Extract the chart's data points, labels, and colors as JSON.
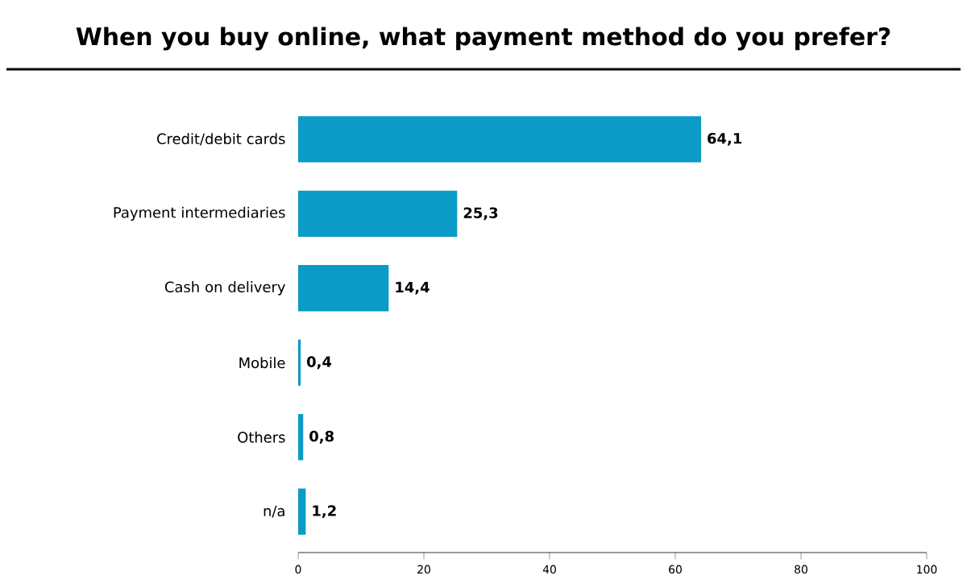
{
  "chart_data": {
    "type": "bar",
    "orientation": "horizontal",
    "title": "When you buy online, what payment method do you prefer?",
    "categories": [
      "Credit/debit cards",
      "Payment intermediaries",
      "Cash on delivery",
      "Mobile",
      "Others",
      "n/a"
    ],
    "values": [
      64.1,
      25.3,
      14.4,
      0.4,
      0.8,
      1.2
    ],
    "value_labels": [
      "64,1",
      "25,3",
      "14,4",
      "0,4",
      "0,8",
      "1,2"
    ],
    "color": "#0a9bc7",
    "xlim": [
      0,
      100
    ],
    "xticks": [
      0,
      20,
      40,
      60,
      80,
      100
    ],
    "grid": false
  }
}
